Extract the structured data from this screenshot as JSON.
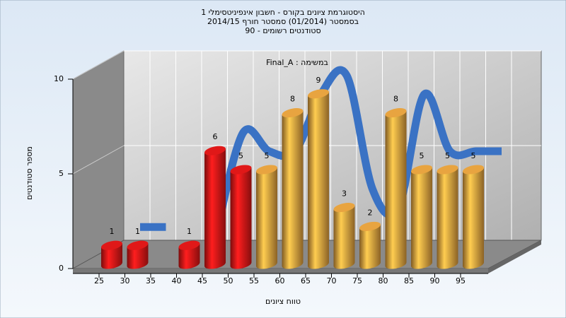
{
  "chart_data": {
    "type": "bar",
    "title": "היסטוגרמת ציונים בקורס - חשבון אינפיניטסימלי 1",
    "subtitle": [
      "בסמסטר  (01/2014)  סמסטר חורף 2014/15",
      "סטודנטים רשומים - 90"
    ],
    "annotation": "Final_A : במשימה",
    "x_label": "טווח ציונים",
    "y_label": "מספר סטודנטים",
    "categories": [
      "25",
      "30",
      "35",
      "40",
      "45",
      "50",
      "55",
      "60",
      "65",
      "70",
      "75",
      "80",
      "85",
      "90",
      "95"
    ],
    "values": [
      1,
      1,
      null,
      1,
      6,
      5,
      5,
      8,
      9,
      3,
      2,
      8,
      5,
      5,
      5
    ],
    "colors": [
      "#e01818",
      "#e01818",
      "#e01818",
      "#e01818",
      "#e01818",
      "#e01818",
      "#e8a440",
      "#e8a440",
      "#e8a440",
      "#e8a440",
      "#e8a440",
      "#e8a440",
      "#e8a440",
      "#e8a440",
      "#e8a440"
    ],
    "line_color": "#3a72c4",
    "ylim": [
      0,
      10
    ],
    "yticks": [
      0,
      5,
      10
    ],
    "grid": true
  }
}
